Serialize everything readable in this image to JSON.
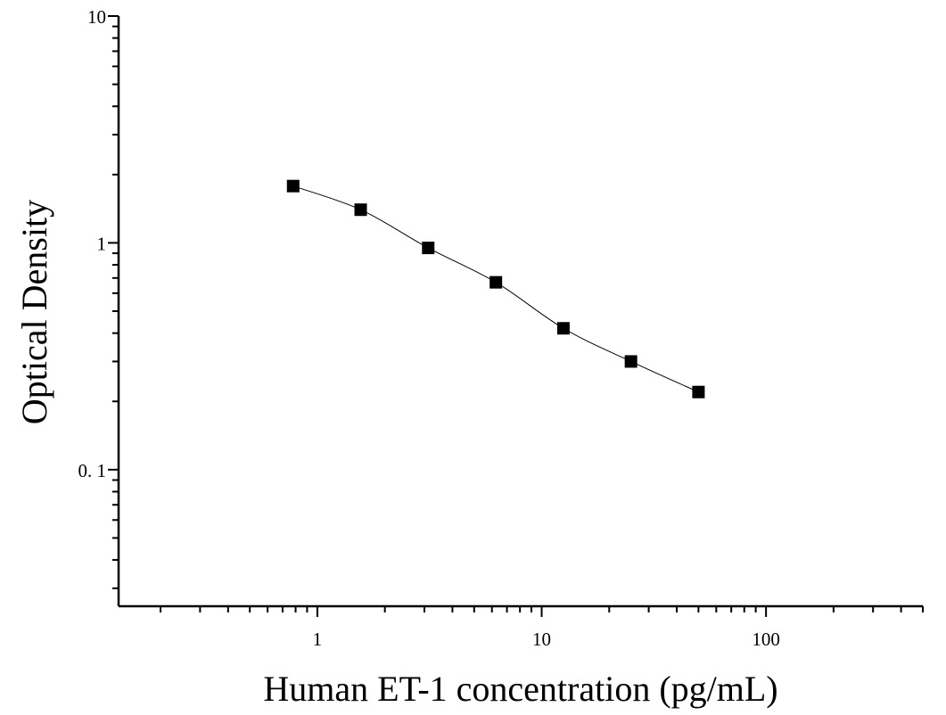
{
  "chart_data": {
    "type": "scatter",
    "title": "",
    "xlabel": "Human ET-1 concentration (pg/mL)",
    "ylabel": "Optical Density",
    "xscale": "log",
    "yscale": "log",
    "xlim": [
      0.13,
      500
    ],
    "ylim": [
      0.025,
      10
    ],
    "x_tick_labels": [
      "1",
      "10",
      "100"
    ],
    "x_tick_values": [
      1,
      10,
      100
    ],
    "y_tick_labels": [
      "0. 1",
      "1",
      "10"
    ],
    "y_tick_values": [
      0.1,
      1,
      10
    ],
    "grid": false,
    "legend": "none",
    "series": [
      {
        "marker": "square",
        "color": "#000000",
        "x": [
          0.78,
          1.56,
          3.12,
          6.25,
          12.5,
          25,
          50
        ],
        "y": [
          1.78,
          1.4,
          0.95,
          0.67,
          0.42,
          0.3,
          0.22
        ]
      }
    ],
    "fit_curve": {
      "color": "#000000",
      "style": "smooth line through points"
    }
  }
}
